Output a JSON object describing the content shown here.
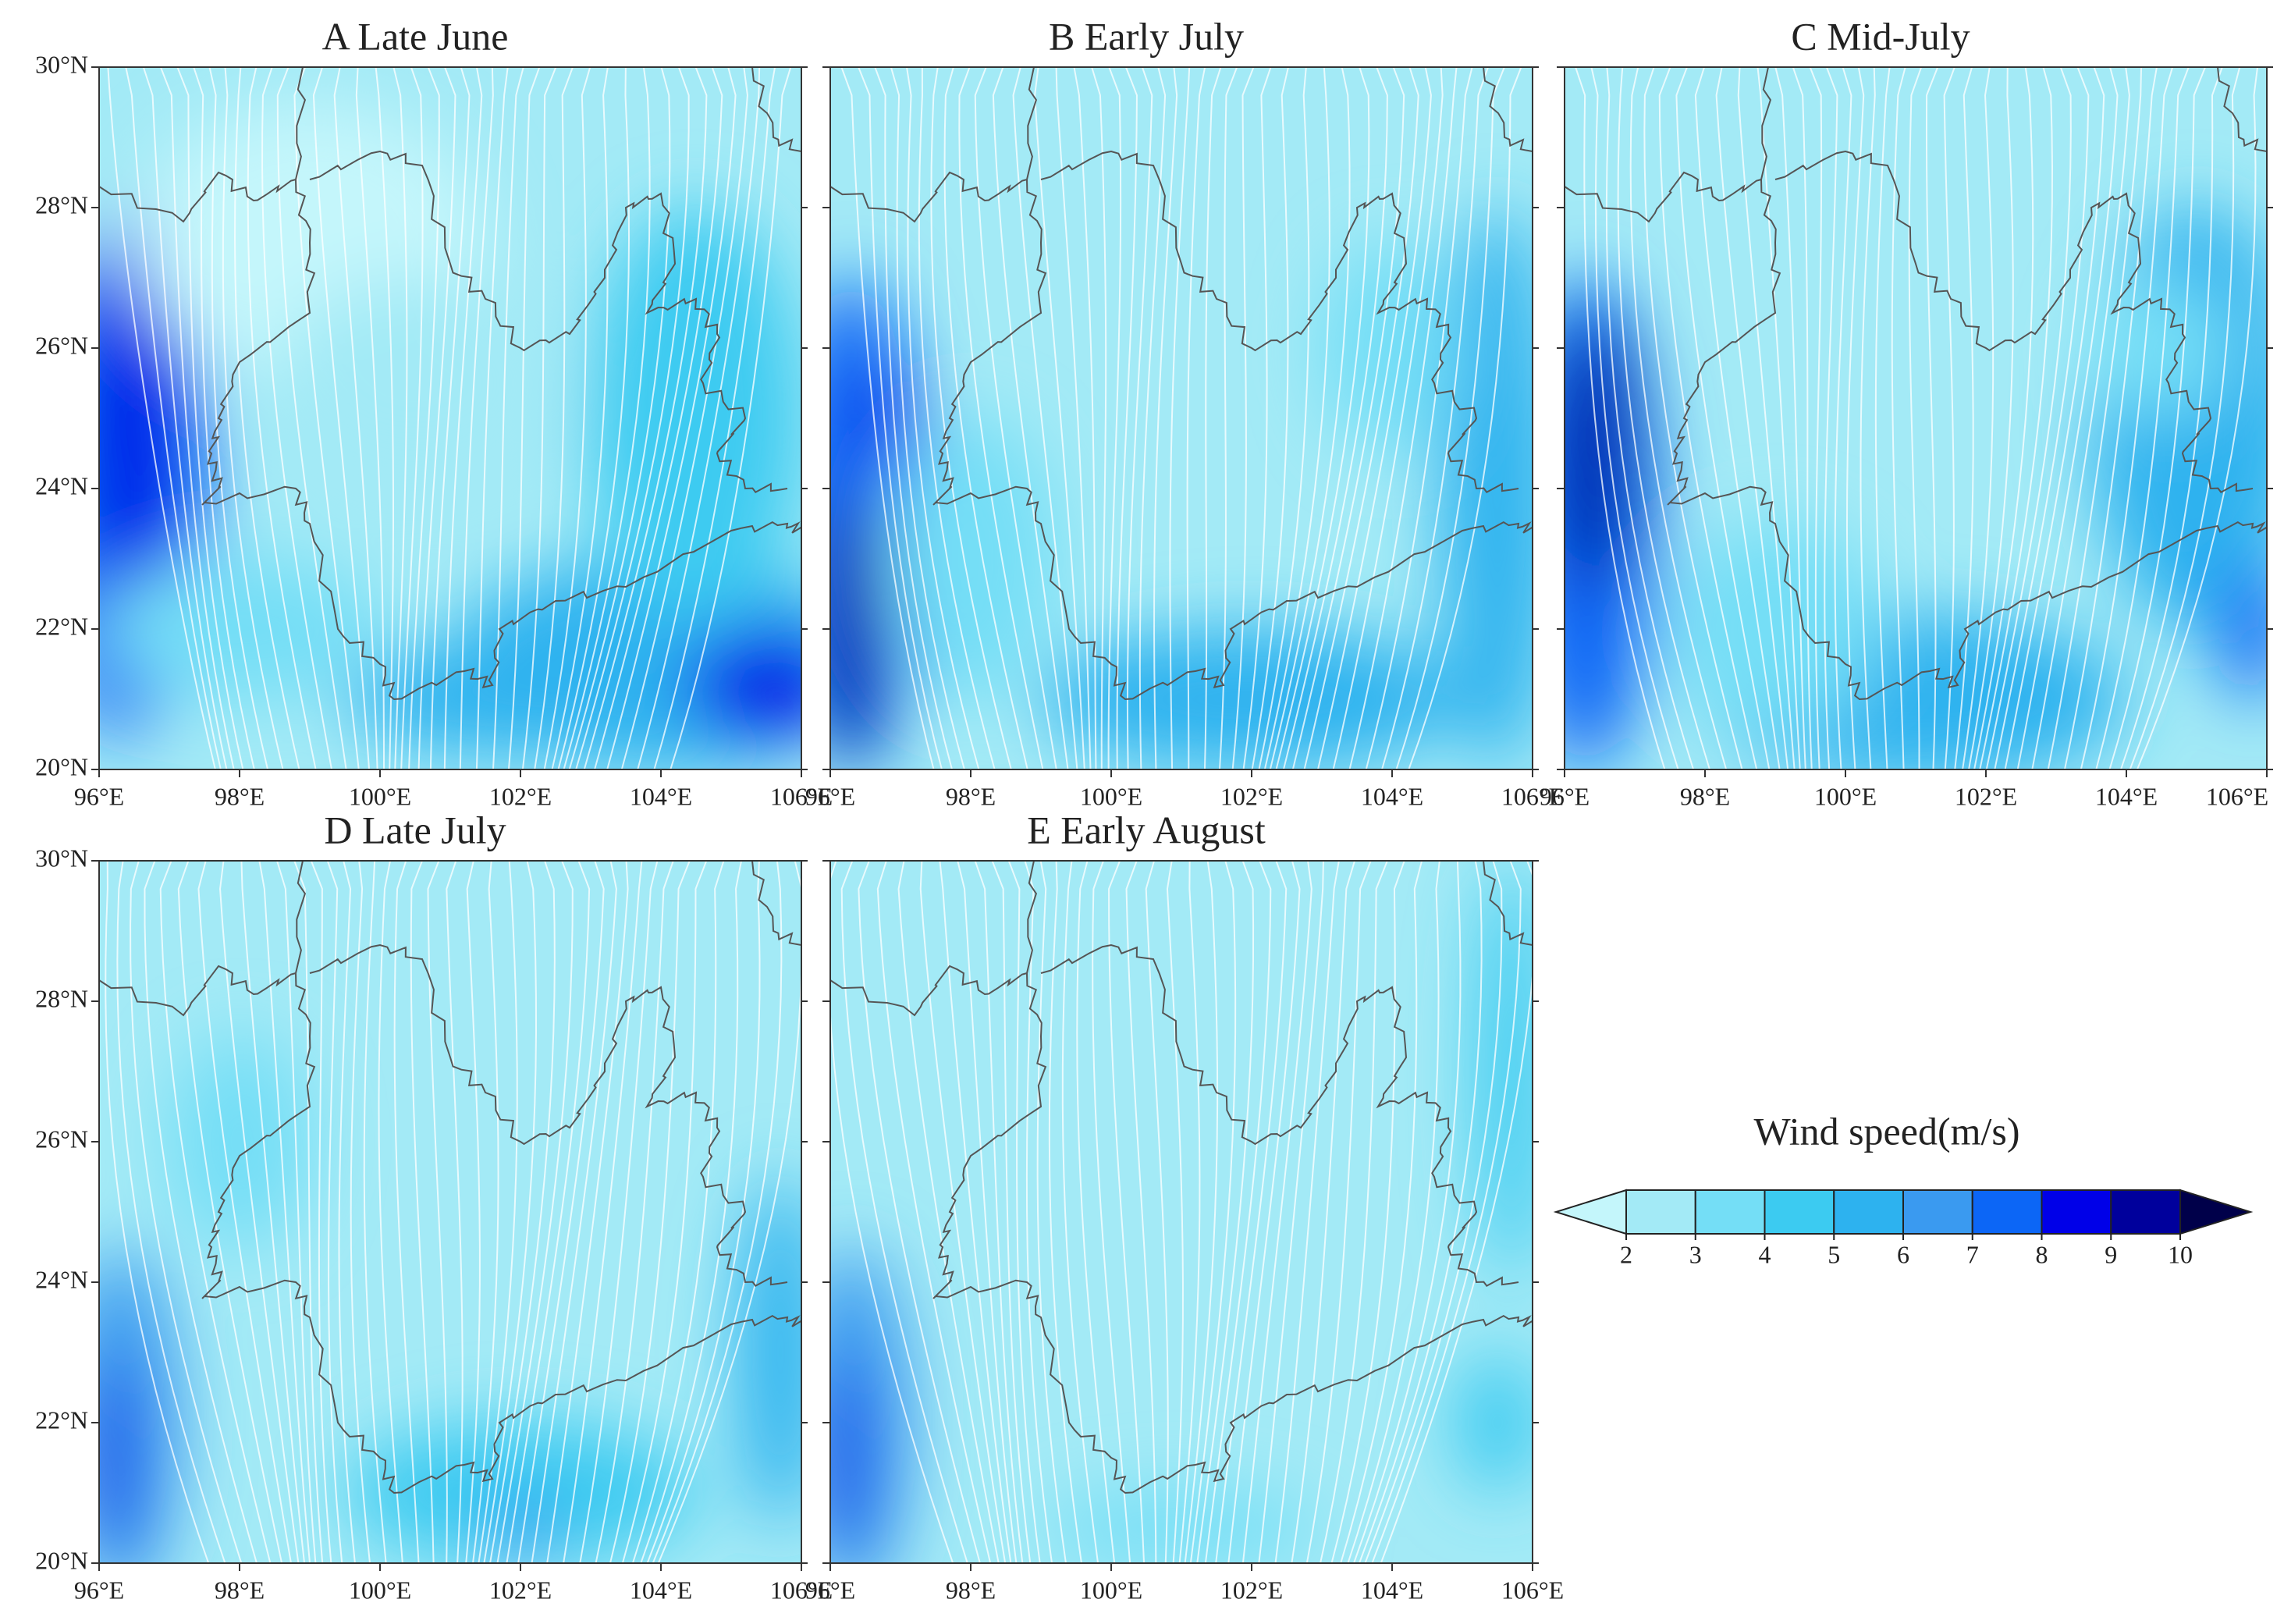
{
  "panels": [
    {
      "title": "A   Late  June"
    },
    {
      "title": "B   Early  July"
    },
    {
      "title": "C    Mid-July"
    },
    {
      "title": "D   Late  July"
    },
    {
      "title": "E   Early  August"
    }
  ],
  "lat_labels": [
    "30°N",
    "28°N",
    "26°N",
    "24°N",
    "22°N",
    "20°N"
  ],
  "lon_labels": [
    "96°E",
    "98°E",
    "100°E",
    "102°E",
    "104°E",
    "106°E"
  ],
  "colorbar": {
    "title": "Wind  speed(m/s)",
    "ticks": [
      2,
      3,
      4,
      5,
      6,
      7,
      8,
      9,
      10
    ],
    "colors": [
      "#c4f6fb",
      "#a3eaf6",
      "#74def6",
      "#3ccbf1",
      "#2db2ef",
      "#3a9af0",
      "#0c66f6",
      "#0000e8",
      "#00009c",
      "#00004a"
    ]
  }
}
